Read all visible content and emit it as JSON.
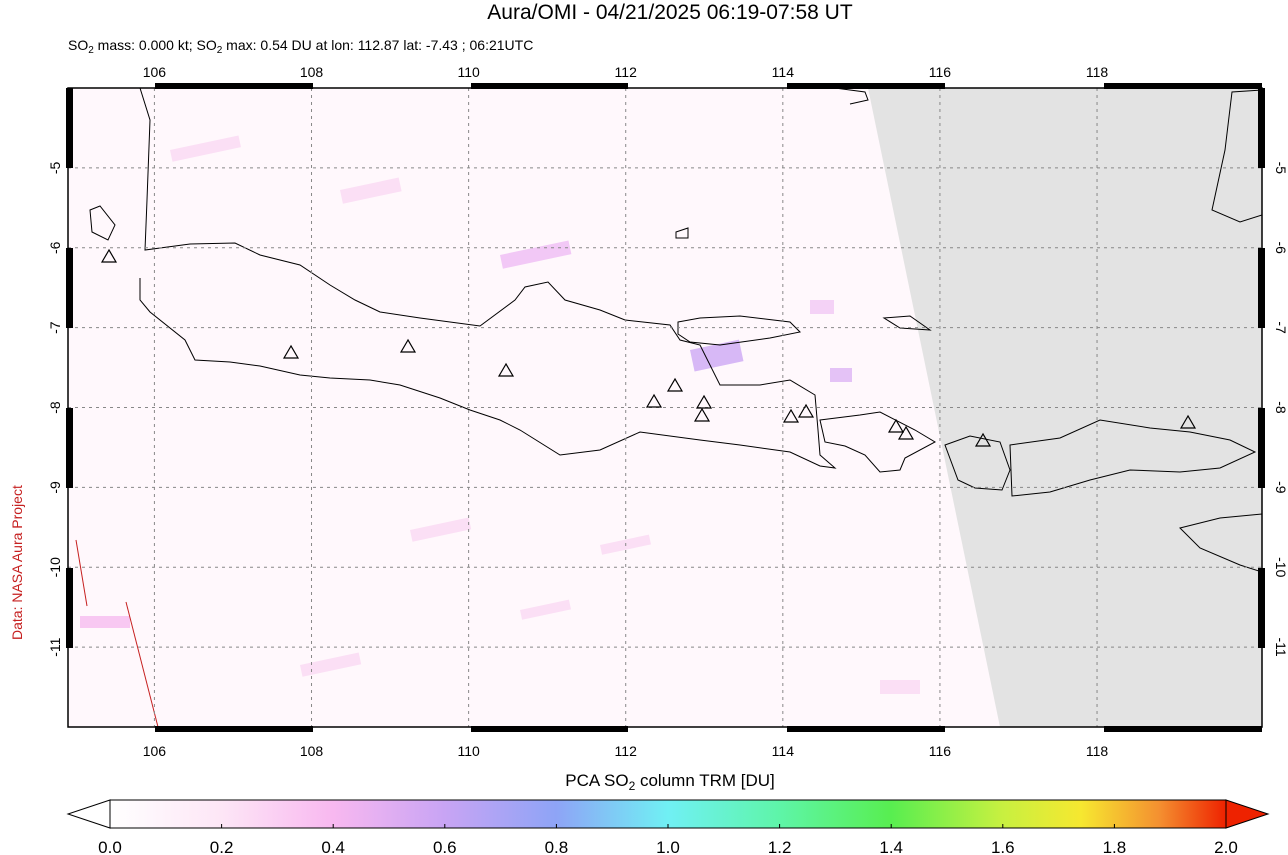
{
  "header": {
    "title": "Aura/OMI - 04/21/2025 06:19-07:58 UT",
    "subtitle_parts": [
      "SO",
      "2",
      " mass: 0.000 kt; SO",
      "2",
      " max: 0.54 DU at lon: 112.87 lat: -7.43 ; 06:21UTC"
    ]
  },
  "map": {
    "xlim": [
      104.9,
      120.1
    ],
    "ylim": [
      -12,
      -4
    ],
    "xticks": [
      106,
      108,
      110,
      112,
      114,
      116,
      118
    ],
    "yticks": [
      -5,
      -6,
      -7,
      -8,
      -9,
      -10,
      -11
    ]
  },
  "colorbar": {
    "label_parts": [
      "PCA SO",
      "2",
      " column TRM [DU]"
    ],
    "lim": [
      0,
      2
    ],
    "ticks": [
      {
        "value": 0,
        "label": "0.0"
      },
      {
        "value": 0.2,
        "label": "0.2"
      },
      {
        "value": 0.4,
        "label": "0.4"
      },
      {
        "value": 0.6,
        "label": "0.6"
      },
      {
        "value": 0.8,
        "label": "0.8"
      },
      {
        "value": 1,
        "label": "1.0"
      },
      {
        "value": 1.2,
        "label": "1.2"
      },
      {
        "value": 1.4,
        "label": "1.4"
      },
      {
        "value": 1.6,
        "label": "1.6"
      },
      {
        "value": 1.8,
        "label": "1.8"
      },
      {
        "value": 2,
        "label": "2.0"
      }
    ]
  },
  "credit": "Data: NASA Aura Project"
}
